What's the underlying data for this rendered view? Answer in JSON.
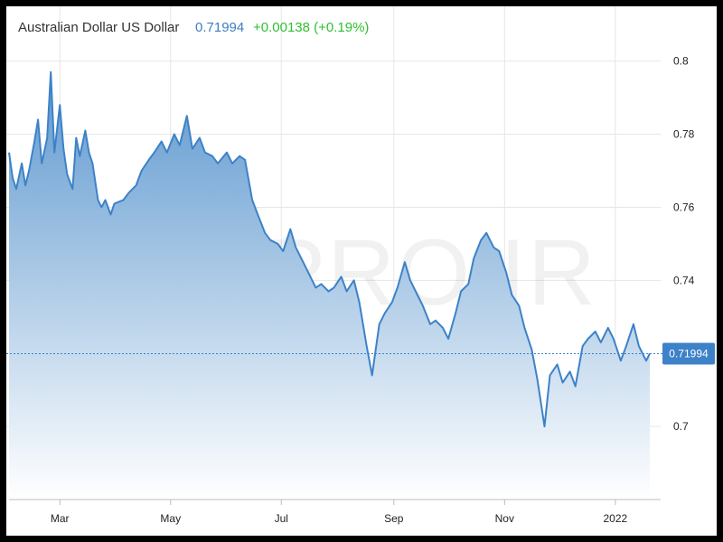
{
  "header": {
    "instrument": "Australian Dollar US Dollar",
    "last_price": "0.71994",
    "change": "+0.00138 (+0.19%)"
  },
  "watermark": "CMPRO.IR",
  "colors": {
    "line": "#3d82c8",
    "area_top": "#5e98cf",
    "area_bottom": "#ffffff",
    "grid": "#e6e6e6",
    "price_tag": "#3d82c8",
    "change_positive": "#2fbf2f"
  },
  "chart_data": {
    "type": "area",
    "title": "Australian Dollar US Dollar",
    "xlabel": "",
    "ylabel": "",
    "x_ticks": [
      "Mar",
      "May",
      "Jul",
      "Sep",
      "Nov",
      "2022"
    ],
    "y_ticks": [
      "0.8",
      "0.78",
      "0.76",
      "0.74",
      "0.7"
    ],
    "ylim": [
      0.68,
      0.815
    ],
    "grid": true,
    "legend": "none",
    "last_value": 0.71994,
    "last_value_label": "0.71994",
    "series": [
      {
        "x": [
          "2021-02-01",
          "2021-02-03",
          "2021-02-05",
          "2021-02-08",
          "2021-02-10",
          "2021-02-12",
          "2021-02-15",
          "2021-02-17",
          "2021-02-19",
          "2021-02-22",
          "2021-02-24",
          "2021-02-26",
          "2021-03-01",
          "2021-03-03",
          "2021-03-05",
          "2021-03-08",
          "2021-03-10",
          "2021-03-12",
          "2021-03-15",
          "2021-03-17",
          "2021-03-19",
          "2021-03-22",
          "2021-03-24",
          "2021-03-26",
          "2021-03-29",
          "2021-03-31",
          "2021-04-05",
          "2021-04-08",
          "2021-04-12",
          "2021-04-15",
          "2021-04-19",
          "2021-04-22",
          "2021-04-26",
          "2021-04-29",
          "2021-05-03",
          "2021-05-06",
          "2021-05-10",
          "2021-05-13",
          "2021-05-17",
          "2021-05-20",
          "2021-05-24",
          "2021-05-27",
          "2021-06-01",
          "2021-06-04",
          "2021-06-08",
          "2021-06-11",
          "2021-06-15",
          "2021-06-18",
          "2021-06-22",
          "2021-06-25",
          "2021-06-29",
          "2021-07-02",
          "2021-07-06",
          "2021-07-09",
          "2021-07-13",
          "2021-07-16",
          "2021-07-20",
          "2021-07-23",
          "2021-07-27",
          "2021-07-30",
          "2021-08-03",
          "2021-08-06",
          "2021-08-10",
          "2021-08-13",
          "2021-08-17",
          "2021-08-20",
          "2021-08-24",
          "2021-08-27",
          "2021-08-31",
          "2021-09-03",
          "2021-09-07",
          "2021-09-10",
          "2021-09-14",
          "2021-09-17",
          "2021-09-21",
          "2021-09-24",
          "2021-09-28",
          "2021-10-01",
          "2021-10-05",
          "2021-10-08",
          "2021-10-12",
          "2021-10-15",
          "2021-10-19",
          "2021-10-22",
          "2021-10-26",
          "2021-10-29",
          "2021-11-02",
          "2021-11-05",
          "2021-11-09",
          "2021-11-12",
          "2021-11-16",
          "2021-11-19",
          "2021-11-23",
          "2021-11-26",
          "2021-11-30",
          "2021-12-03",
          "2021-12-07",
          "2021-12-10",
          "2021-12-14",
          "2021-12-17",
          "2021-12-21",
          "2021-12-24",
          "2021-12-28",
          "2021-12-31",
          "2022-01-04",
          "2022-01-07",
          "2022-01-11",
          "2022-01-14",
          "2022-01-18",
          "2022-01-20"
        ],
        "y": [
          0.775,
          0.768,
          0.765,
          0.772,
          0.766,
          0.77,
          0.778,
          0.784,
          0.772,
          0.779,
          0.797,
          0.775,
          0.788,
          0.776,
          0.769,
          0.765,
          0.779,
          0.774,
          0.781,
          0.775,
          0.772,
          0.762,
          0.76,
          0.762,
          0.758,
          0.761,
          0.762,
          0.764,
          0.766,
          0.77,
          0.773,
          0.775,
          0.778,
          0.775,
          0.78,
          0.777,
          0.785,
          0.776,
          0.779,
          0.775,
          0.774,
          0.772,
          0.775,
          0.772,
          0.774,
          0.773,
          0.762,
          0.758,
          0.753,
          0.751,
          0.75,
          0.748,
          0.754,
          0.749,
          0.745,
          0.742,
          0.738,
          0.739,
          0.737,
          0.738,
          0.741,
          0.737,
          0.74,
          0.734,
          0.722,
          0.714,
          0.728,
          0.731,
          0.734,
          0.738,
          0.745,
          0.74,
          0.736,
          0.733,
          0.728,
          0.729,
          0.727,
          0.724,
          0.731,
          0.737,
          0.739,
          0.746,
          0.751,
          0.753,
          0.749,
          0.748,
          0.742,
          0.736,
          0.733,
          0.727,
          0.721,
          0.713,
          0.7,
          0.714,
          0.717,
          0.712,
          0.715,
          0.711,
          0.722,
          0.724,
          0.726,
          0.723,
          0.727,
          0.724,
          0.718,
          0.722,
          0.728,
          0.722,
          0.718,
          0.72
        ]
      }
    ]
  }
}
